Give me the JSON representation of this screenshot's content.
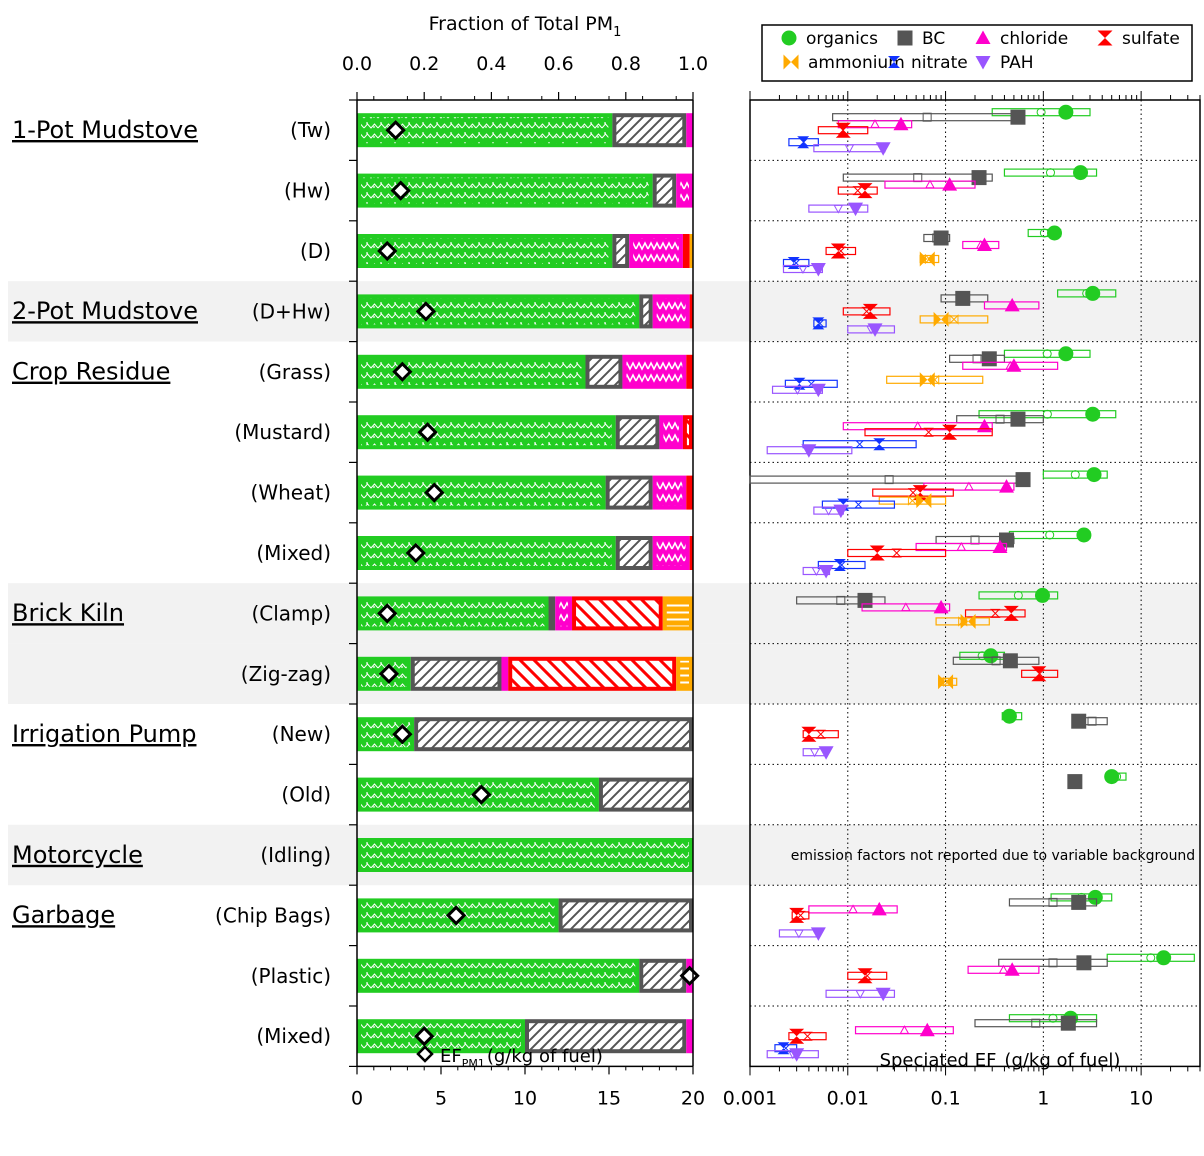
{
  "chart_data": [
    {
      "type": "bar",
      "subtype": "stacked-horizontal-fraction",
      "title": "Fraction of Total PM",
      "title_sub": "1",
      "xlabel_bottom": "EF",
      "xlabel_bottom_sub": "PM1",
      "xlabel_bottom_unit": "(g/kg of fuel)",
      "xlim_top": [
        0,
        1
      ],
      "xticks_top": [
        "0.0",
        "0.2",
        "0.4",
        "0.6",
        "0.8",
        "1.0"
      ],
      "xlim_bottom": [
        0,
        20
      ],
      "xticks_bottom": [
        "0",
        "5",
        "10",
        "15",
        "20"
      ],
      "marker_symbol": "◇",
      "components": [
        "organics",
        "BC",
        "chloride",
        "sulfate",
        "ammonium"
      ],
      "rows": [
        {
          "group": "1-Pot Mudstove",
          "label": "(Tw)",
          "shaded": false,
          "fractions": [
            0.76,
            0.22,
            0.02,
            0,
            0
          ],
          "ef": 2.3
        },
        {
          "group": "",
          "label": "(Hw)",
          "shaded": false,
          "fractions": [
            0.88,
            0.07,
            0.05,
            0,
            0
          ],
          "ef": 2.6
        },
        {
          "group": "",
          "label": "(D)",
          "shaded": false,
          "fractions": [
            0.76,
            0.05,
            0.16,
            0.02,
            0.01
          ],
          "ef": 1.8
        },
        {
          "group": "2-Pot Mudstove",
          "label": "(D+Hw)",
          "shaded": true,
          "fractions": [
            0.84,
            0.04,
            0.11,
            0.01,
            0
          ],
          "ef": 4.1
        },
        {
          "group": "Crop Residue",
          "label": "(Grass)",
          "shaded": false,
          "fractions": [
            0.68,
            0.11,
            0.19,
            0.02,
            0
          ],
          "ef": 2.7
        },
        {
          "group": "",
          "label": "(Mustard)",
          "shaded": false,
          "fractions": [
            0.77,
            0.13,
            0.07,
            0.03,
            0
          ],
          "ef": 4.2
        },
        {
          "group": "",
          "label": "(Wheat)",
          "shaded": false,
          "fractions": [
            0.74,
            0.14,
            0.1,
            0.02,
            0
          ],
          "ef": 4.6
        },
        {
          "group": "",
          "label": "(Mixed)",
          "shaded": false,
          "fractions": [
            0.77,
            0.11,
            0.11,
            0.01,
            0
          ],
          "ef": 3.5
        },
        {
          "group": "Brick Kiln",
          "label": "(Clamp)",
          "shaded": true,
          "fractions": [
            0.57,
            0.02,
            0.05,
            0.27,
            0.09
          ],
          "ef": 1.8
        },
        {
          "group": "",
          "label": "(Zig-zag)",
          "shaded": true,
          "fractions": [
            0.16,
            0.27,
            0.02,
            0.5,
            0.05
          ],
          "ef": 1.9
        },
        {
          "group": "Irrigation Pump",
          "label": "(New)",
          "shaded": false,
          "fractions": [
            0.17,
            0.83,
            0,
            0,
            0
          ],
          "ef": 2.7
        },
        {
          "group": "",
          "label": "(Old)",
          "shaded": false,
          "fractions": [
            0.72,
            0.28,
            0,
            0,
            0
          ],
          "ef": 7.4
        },
        {
          "group": "Motorcycle",
          "label": "(Idling)",
          "shaded": true,
          "fractions": [
            1.0,
            0,
            0,
            0,
            0
          ],
          "ef": null
        },
        {
          "group": "Garbage",
          "label": "(Chip Bags)",
          "shaded": false,
          "fractions": [
            0.6,
            0.4,
            0,
            0,
            0
          ],
          "ef": 5.9
        },
        {
          "group": "",
          "label": "(Plastic)",
          "shaded": false,
          "fractions": [
            0.84,
            0.14,
            0.02,
            0,
            0
          ],
          "ef": 19.8
        },
        {
          "group": "",
          "label": "(Mixed)",
          "shaded": false,
          "fractions": [
            0.5,
            0.48,
            0.02,
            0,
            0
          ],
          "ef": 4.0
        }
      ]
    },
    {
      "type": "scatter",
      "subtype": "log-x-range-boxes",
      "xlabel": "Speciated EF",
      "xlabel_unit": "(g/kg of fuel)",
      "xscale": "log",
      "xlim": [
        0.001,
        40
      ],
      "xticks": [
        "0.001",
        "0.01",
        "0.1",
        "1",
        "10"
      ],
      "grid": true,
      "legend_position": "top",
      "annotation": "emission factors not reported due to variable background",
      "annotation_row": 12,
      "series": [
        {
          "name": "organics",
          "color": "#22cc22",
          "symbol": "circle",
          "points": [
            [
              0,
              1.7,
              0.3,
              3
            ],
            [
              1,
              2.4,
              0.4,
              3.5
            ],
            [
              2,
              1.3,
              0.7,
              1.5
            ],
            [
              3,
              3.2,
              1.4,
              5.5
            ],
            [
              4,
              1.7,
              0.4,
              3
            ],
            [
              5,
              3.2,
              0.22,
              5.5
            ],
            [
              6,
              3.3,
              1.0,
              4.5
            ],
            [
              7,
              2.6,
              0.45,
              3.0
            ],
            [
              8,
              0.98,
              0.22,
              1.4
            ],
            [
              9,
              0.29,
              0.14,
              0.4
            ],
            [
              10,
              0.45,
              0.38,
              0.6
            ],
            [
              11,
              5.0,
              4.5,
              7
            ],
            [
              13,
              3.4,
              1.2,
              5
            ],
            [
              14,
              17,
              4.5,
              35
            ],
            [
              15,
              1.9,
              0.45,
              3.5
            ]
          ]
        },
        {
          "name": "BC",
          "color": "#555555",
          "symbol": "square",
          "points": [
            [
              0,
              0.55,
              0.007,
              0.6
            ],
            [
              1,
              0.22,
              0.009,
              0.3
            ],
            [
              2,
              0.09,
              0.06,
              0.11
            ],
            [
              3,
              0.15,
              0.09,
              0.27
            ],
            [
              4,
              0.28,
              0.11,
              0.4
            ],
            [
              5,
              0.55,
              0.13,
              1.0
            ],
            [
              6,
              0.62,
              0.001,
              0.7
            ],
            [
              7,
              0.42,
              0.08,
              0.5
            ],
            [
              8,
              0.015,
              0.003,
              0.024
            ],
            [
              9,
              0.46,
              0.12,
              0.9
            ],
            [
              10,
              2.3,
              2.2,
              4.5
            ],
            [
              11,
              2.1,
              1.9,
              2.4
            ],
            [
              13,
              2.3,
              0.45,
              3.5
            ],
            [
              14,
              2.6,
              0.35,
              4.5
            ],
            [
              15,
              1.8,
              0.2,
              3.5
            ]
          ]
        },
        {
          "name": "chloride",
          "color": "#ff00cc",
          "symbol": "triangle-up",
          "points": [
            [
              0,
              0.035,
              0.008,
              0.045
            ],
            [
              1,
              0.11,
              0.024,
              0.2
            ],
            [
              2,
              0.25,
              0.15,
              0.35
            ],
            [
              3,
              0.48,
              0.25,
              0.9
            ],
            [
              4,
              0.5,
              0.15,
              1.4
            ],
            [
              5,
              0.25,
              0.009,
              0.3
            ],
            [
              6,
              0.42,
              0.06,
              0.5
            ],
            [
              7,
              0.36,
              0.05,
              0.42
            ],
            [
              8,
              0.09,
              0.014,
              0.11
            ],
            [
              9,
              null,
              null,
              null
            ],
            [
              13,
              0.021,
              0.004,
              0.032
            ],
            [
              14,
              0.48,
              0.17,
              0.9
            ],
            [
              15,
              0.065,
              0.012,
              0.12
            ]
          ]
        },
        {
          "name": "sulfate",
          "color": "#ff0000",
          "symbol": "hourglass",
          "points": [
            [
              0,
              0.009,
              0.005,
              0.016
            ],
            [
              1,
              0.015,
              0.008,
              0.02
            ],
            [
              2,
              0.008,
              0.006,
              0.012
            ],
            [
              3,
              0.017,
              0.009,
              0.027
            ],
            [
              5,
              0.11,
              0.015,
              0.3
            ],
            [
              6,
              0.055,
              0.018,
              0.12
            ],
            [
              7,
              0.02,
              0.01,
              0.1
            ],
            [
              8,
              0.47,
              0.16,
              0.65
            ],
            [
              9,
              0.9,
              0.6,
              1.4
            ],
            [
              10,
              0.004,
              0.0035,
              0.008
            ],
            [
              13,
              0.003,
              0.0027,
              0.004
            ],
            [
              14,
              0.015,
              0.01,
              0.025
            ],
            [
              15,
              0.003,
              0.0025,
              0.006
            ]
          ]
        },
        {
          "name": "ammonium",
          "color": "#ffaa00",
          "symbol": "bowtie",
          "points": [
            [
              2,
              0.065,
              0.055,
              0.085
            ],
            [
              3,
              0.09,
              0.055,
              0.27
            ],
            [
              4,
              0.065,
              0.025,
              0.24
            ],
            [
              6,
              0.06,
              0.021,
              0.1
            ],
            [
              8,
              0.17,
              0.08,
              0.28
            ],
            [
              9,
              0.1,
              0.085,
              0.13
            ]
          ]
        },
        {
          "name": "nitrate",
          "color": "#1133ff",
          "symbol": "bowtie-v",
          "points": [
            [
              0,
              0.0035,
              0.0025,
              0.005
            ],
            [
              2,
              0.0028,
              0.0022,
              0.004
            ],
            [
              3,
              0.005,
              0.0045,
              0.006
            ],
            [
              4,
              0.0032,
              0.0023,
              0.0078
            ],
            [
              5,
              0.021,
              0.0035,
              0.05
            ],
            [
              6,
              0.009,
              0.0055,
              0.03
            ],
            [
              7,
              0.0083,
              0.005,
              0.015
            ],
            [
              15,
              0.0022,
              0.0018,
              0.003
            ]
          ]
        },
        {
          "name": "PAH",
          "color": "#9955ff",
          "symbol": "triangle-down",
          "points": [
            [
              0,
              0.023,
              0.0045,
              0.024
            ],
            [
              1,
              0.012,
              0.004,
              0.016
            ],
            [
              2,
              0.005,
              0.0022,
              0.0055
            ],
            [
              3,
              0.019,
              0.01,
              0.03
            ],
            [
              4,
              0.005,
              0.0017,
              0.0055
            ],
            [
              5,
              0.004,
              0.0015,
              0.011
            ],
            [
              6,
              0.0085,
              0.0045,
              0.009
            ],
            [
              7,
              0.006,
              0.0035,
              0.0065
            ],
            [
              10,
              0.006,
              0.0035,
              0.006
            ],
            [
              13,
              0.005,
              0.002,
              0.005
            ],
            [
              14,
              0.023,
              0.006,
              0.03
            ],
            [
              15,
              0.003,
              0.0015,
              0.005
            ]
          ]
        }
      ]
    }
  ]
}
